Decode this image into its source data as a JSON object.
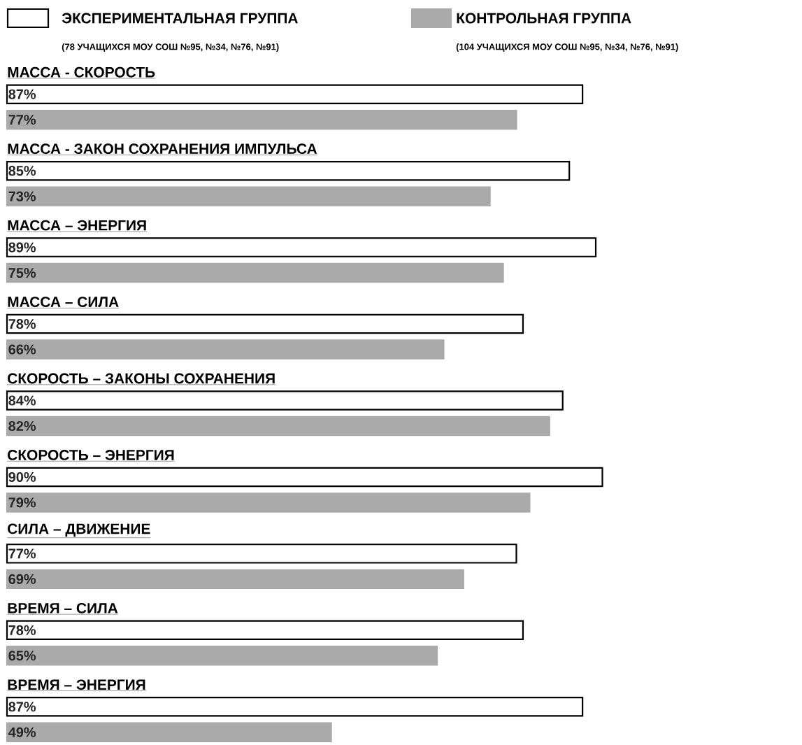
{
  "chart_data": {
    "type": "bar",
    "orientation": "horizontal",
    "categories": [
      "МАССА - СКОРОСТЬ",
      "МАССА - ЗАКОН СОХРАНЕНИЯ ИМПУЛЬСА",
      "МАССА – ЭНЕРГИЯ",
      "МАССА – СИЛА",
      "СКОРОСТЬ – ЗАКОНЫ СОХРАНЕНИЯ",
      "СКОРОСТЬ – ЭНЕРГИЯ",
      "СИЛА – ДВИЖЕНИЕ",
      "ВРЕМЯ – СИЛА",
      "ВРЕМЯ  – ЭНЕРГИЯ"
    ],
    "series": [
      {
        "name": "ЭКСПЕРИМЕНТАЛЬНАЯ ГРУППА",
        "color": "#ffffff",
        "values": [
          87,
          85,
          89,
          78,
          84,
          90,
          77,
          78,
          87
        ],
        "value_labels": [
          "87%",
          "85%",
          "89%",
          "78%",
          "84%",
          "90%",
          "77%",
          "78%",
          "87%"
        ]
      },
      {
        "name": "КОНТРОЛЬНАЯ ГРУППА",
        "color": "#aaaaaa",
        "values": [
          77,
          73,
          75,
          66,
          82,
          79,
          69,
          65,
          49
        ],
        "value_labels": [
          "77%",
          "73%",
          "75%",
          "66%",
          "82%",
          "79%",
          "69%",
          "65%",
          "49%"
        ]
      }
    ],
    "annotations": [
      "(78 УЧАЩИХСЯ МОУ СОШ №95, №34, №76, №91)",
      "(104 УЧАЩИХСЯ МОУ СОШ №95, №34, №76, №91)"
    ],
    "legend": "top"
  }
}
